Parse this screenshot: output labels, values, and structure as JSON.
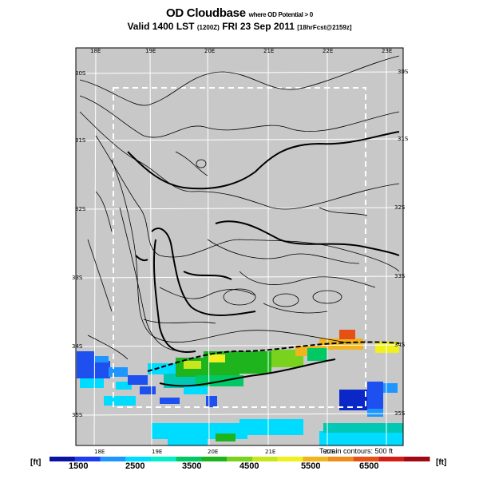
{
  "title": {
    "main": "OD Cloudbase",
    "sub": "where OD Potential > 0",
    "valid_main": "Valid 1400 LST",
    "valid_utc": "(1200Z)",
    "valid_date": "FRI 23 Sep 2011",
    "forecast": "[18hrFcst@2159z]"
  },
  "map": {
    "longitude_labels_top": [
      "18E",
      "19E",
      "20E",
      "21E",
      "22E",
      "23E"
    ],
    "longitude_labels_bottom": [
      "18E",
      "19E",
      "20E",
      "21E",
      "22E"
    ],
    "latitude_labels_left": [
      "30S",
      "31S",
      "32S",
      "33S",
      "34S",
      "35S"
    ],
    "latitude_labels_right": [
      "30S",
      "31S",
      "32S",
      "33S",
      "34S",
      "35S"
    ],
    "terrain_note": "Terrain contours: 500 ft",
    "background_color": "#c8c8c8"
  },
  "colorbar": {
    "unit_left": "[ft]",
    "unit_right": "[ft]",
    "labels": [
      "1500",
      "2500",
      "3500",
      "4500",
      "5500",
      "6500"
    ],
    "colors": [
      "#0a14a0",
      "#1e3cf0",
      "#1e96ff",
      "#00dcff",
      "#00f0c8",
      "#00c864",
      "#1eb41e",
      "#78d21e",
      "#c8e61e",
      "#f0f01e",
      "#f0b41e",
      "#f08c1e",
      "#e65014",
      "#d21e14",
      "#a00a14"
    ]
  }
}
